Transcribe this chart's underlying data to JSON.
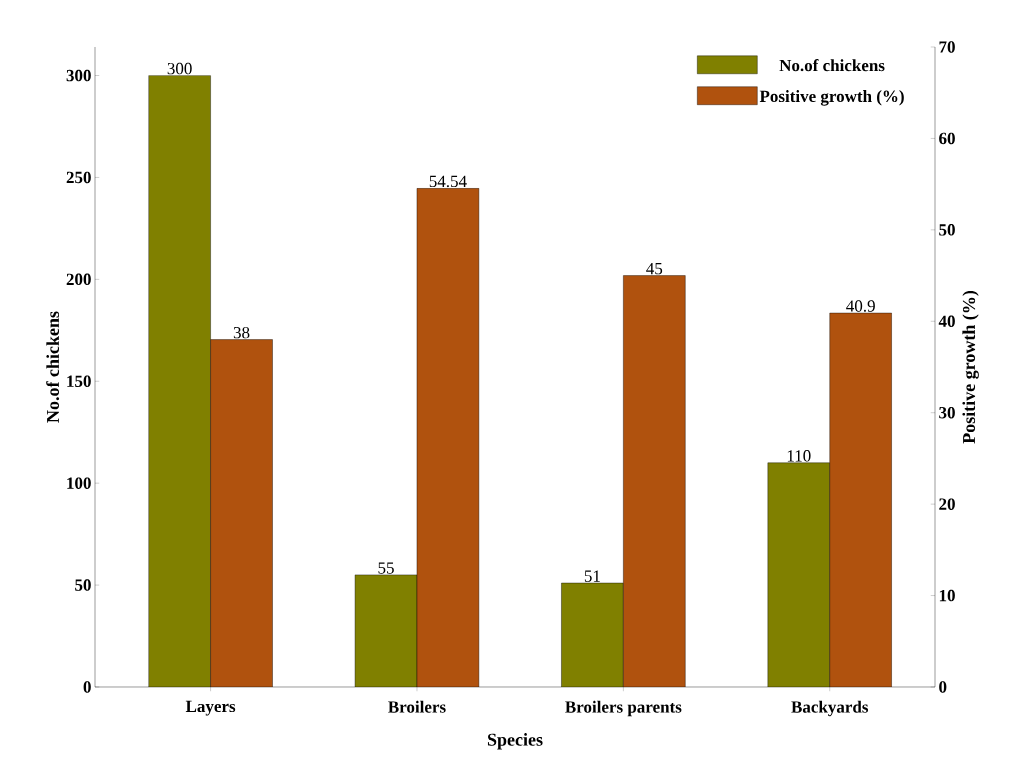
{
  "chart_data": {
    "type": "bar",
    "xlabel": "Species",
    "ylabel": "No.of chickens",
    "y2label": "Positive growth (%)",
    "categories": [
      "Layers",
      "Broilers",
      "Broilers parents",
      "Backyards"
    ],
    "series": [
      {
        "name": "No.of chickens",
        "color": "#808000",
        "values": [
          300,
          55,
          51,
          110
        ]
      },
      {
        "name": "Positive growth (%)",
        "color": "#b0520e",
        "values": [
          38,
          54.54,
          45,
          40.9
        ],
        "axis": "y2"
      }
    ],
    "ylim": [
      0,
      314
    ],
    "yticks": [
      0,
      50,
      100,
      150,
      200,
      250,
      300
    ],
    "y2lim": [
      0,
      70
    ],
    "y2ticks": [
      0,
      10,
      20,
      30,
      40,
      50,
      60,
      70
    ],
    "data_labels": true,
    "legend": "top right"
  }
}
